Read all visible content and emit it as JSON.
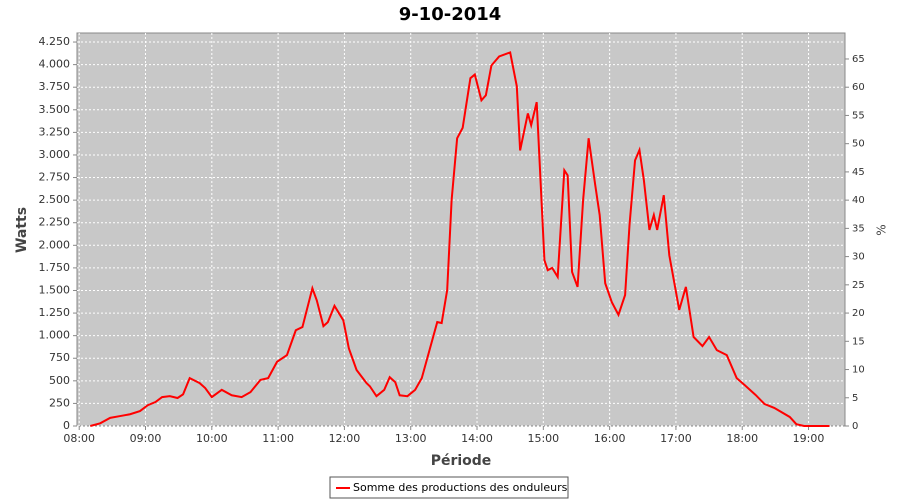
{
  "chart_data": {
    "type": "line",
    "title": "9-10-2014",
    "x_label": "Période",
    "y_label": "Watts",
    "y2_label": "%",
    "grid": true,
    "legend": "bottom",
    "xlim": [
      "07:58",
      "19:33"
    ],
    "xticks": [
      "08:00",
      "09:00",
      "10:00",
      "11:00",
      "12:00",
      "13:00",
      "14:00",
      "15:00",
      "16:00",
      "17:00",
      "18:00",
      "19:00"
    ],
    "ylim": [
      0,
      4350
    ],
    "yticks": [
      0,
      250,
      500,
      750,
      {
        "value": 1000,
        "label": "1.000"
      },
      {
        "value": 1250,
        "label": "1.250"
      },
      {
        "value": 1500,
        "label": "1.500"
      },
      {
        "value": 1750,
        "label": "1.750"
      },
      {
        "value": 2000,
        "label": "2.000"
      },
      {
        "value": 2250,
        "label": "2.250"
      },
      {
        "value": 2500,
        "label": "2.500"
      },
      {
        "value": 2750,
        "label": "2.750"
      },
      {
        "value": 3000,
        "label": "3.000"
      },
      {
        "value": 3250,
        "label": "3.250"
      },
      {
        "value": 3500,
        "label": "3.500"
      },
      {
        "value": 3750,
        "label": "3.750"
      },
      {
        "value": 4000,
        "label": "4.000"
      },
      {
        "value": 4250,
        "label": "4.250"
      }
    ],
    "y2lim": [
      0,
      69.6
    ],
    "y2ticks": [
      0,
      5,
      10,
      15,
      20,
      25,
      30,
      35,
      40,
      45,
      50,
      55,
      60,
      65
    ],
    "x": [
      "08:10",
      "08:19",
      "08:28",
      "08:37",
      "08:46",
      "08:55",
      "09:02",
      "09:09",
      "09:15",
      "09:22",
      "09:29",
      "09:34",
      "09:40",
      "09:49",
      "09:54",
      "10:00",
      "10:09",
      "10:18",
      "10:27",
      "10:35",
      "10:44",
      "10:51",
      "10:59",
      "11:08",
      "11:16",
      "11:22",
      "11:31",
      "11:35",
      "11:41",
      "11:45",
      "11:51",
      "11:59",
      "12:04",
      "12:11",
      "12:20",
      "12:23",
      "12:29",
      "12:36",
      "12:41",
      "12:46",
      "12:50",
      "12:57",
      "13:04",
      "13:10",
      "13:17",
      "13:24",
      "13:28",
      "13:33",
      "13:37",
      "13:42",
      "13:47",
      "13:54",
      "13:58",
      "14:04",
      "14:08",
      "14:13",
      "14:20",
      "14:30",
      "14:36",
      "14:39",
      "14:46",
      "14:49",
      "14:54",
      "15:01",
      "15:04",
      "15:08",
      "15:13",
      "15:19",
      "15:22",
      "15:26",
      "15:31",
      "15:36",
      "15:41",
      "15:47",
      "15:51",
      "15:56",
      "16:02",
      "16:08",
      "16:14",
      "16:18",
      "16:23",
      "16:27",
      "16:31",
      "16:36",
      "16:40",
      "16:43",
      "16:49",
      "16:54",
      "17:03",
      "17:09",
      "17:16",
      "17:24",
      "17:30",
      "17:37",
      "17:46",
      "17:55",
      "18:02",
      "18:12",
      "18:20",
      "18:29",
      "18:43",
      "18:49",
      "18:56",
      "19:19"
    ],
    "series": [
      {
        "name": "Somme des productions des onduleurs",
        "color": "#ff0000",
        "values": [
          0,
          30,
          90,
          110,
          130,
          165,
          230,
          265,
          320,
          330,
          310,
          350,
          530,
          475,
          420,
          320,
          400,
          340,
          320,
          375,
          510,
          530,
          710,
          785,
          1060,
          1095,
          1525,
          1390,
          1105,
          1150,
          1330,
          1170,
          860,
          620,
          475,
          440,
          330,
          400,
          540,
          485,
          340,
          330,
          400,
          530,
          840,
          1150,
          1140,
          1505,
          2500,
          3185,
          3300,
          3850,
          3890,
          3605,
          3660,
          3990,
          4090,
          4135,
          3760,
          3050,
          3460,
          3330,
          3585,
          1835,
          1725,
          1750,
          1650,
          2830,
          2775,
          1705,
          1540,
          2500,
          3185,
          2665,
          2335,
          1580,
          1370,
          1230,
          1450,
          2225,
          2940,
          3055,
          2720,
          2170,
          2335,
          2170,
          2555,
          1890,
          1285,
          1540,
          985,
          885,
          985,
          840,
          785,
          530,
          455,
          345,
          245,
          200,
          100,
          20,
          0,
          0
        ]
      }
    ]
  }
}
